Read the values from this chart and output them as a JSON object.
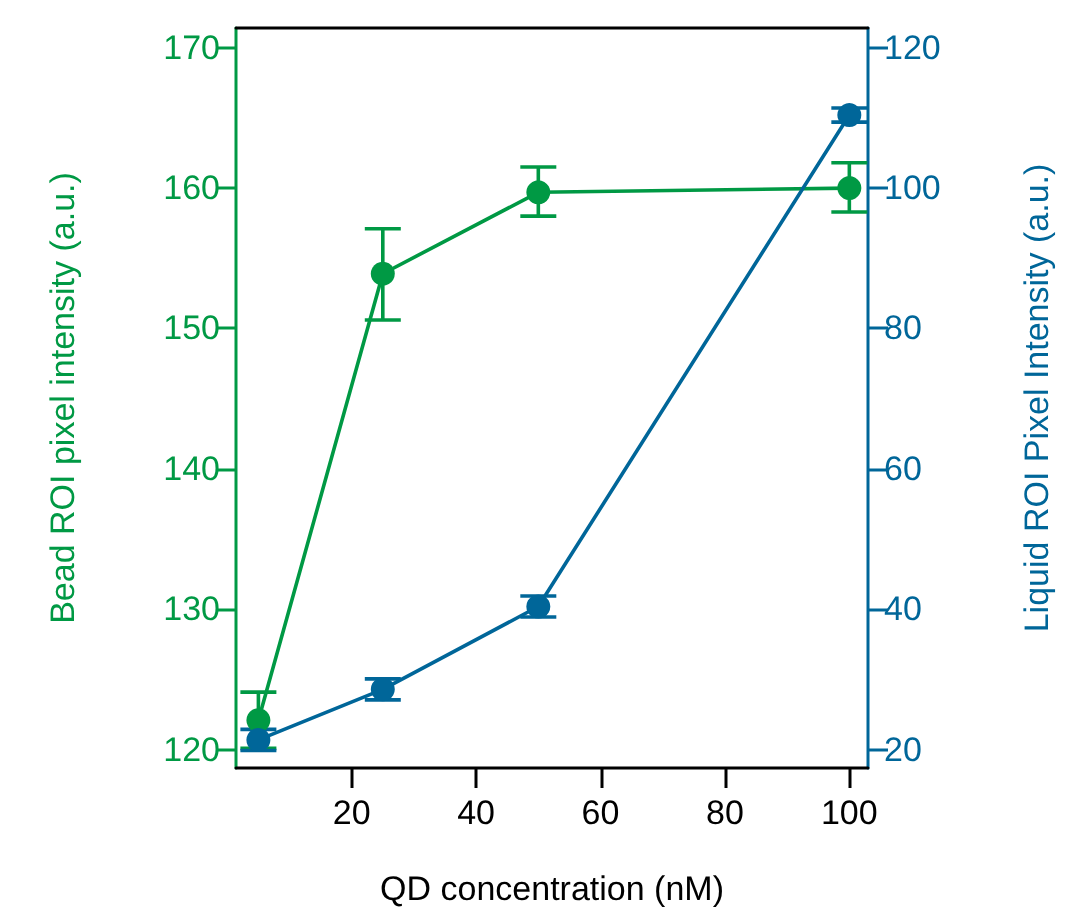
{
  "chart_data": {
    "type": "line",
    "xlabel": "QD concentration (nM)",
    "ylabel": "Bead ROI pixel intensity (a.u.)",
    "y2label": "Liquid ROI Pixel Intensity (a.u.)",
    "x": [
      5,
      25,
      50,
      100
    ],
    "series": [
      {
        "color": "#009944",
        "values": [
          122.1,
          153.9,
          159.7,
          160.0
        ],
        "errors": [
          2,
          [
            150.6,
            157.1
          ],
          [
            158.0,
            161.5
          ],
          [
            158.3,
            161.8
          ]
        ]
      },
      {
        "color": "#006699",
        "axis": "y2",
        "values": [
          21.4,
          28.6,
          40.4,
          110.4
        ],
        "errors": [
          1.5,
          1.5,
          1.5,
          1
        ]
      }
    ],
    "xlim": [
      1.4,
      103
    ],
    "xticks": [
      20,
      40,
      60,
      80,
      100
    ],
    "ylim": [
      118.7,
      171.4
    ],
    "yticks": [
      120,
      130,
      140,
      150,
      160,
      170
    ],
    "y2lim": [
      17.4,
      122.8
    ],
    "y2ticks": [
      20,
      40,
      60,
      80,
      100,
      120
    ],
    "marker": "circle",
    "line_style": "solid"
  }
}
